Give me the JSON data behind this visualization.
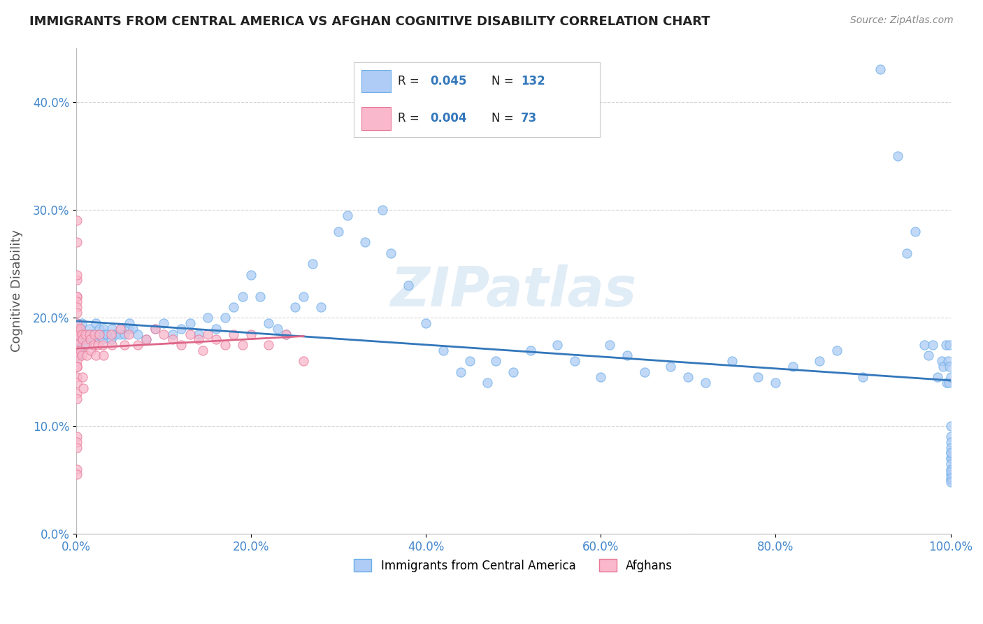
{
  "title": "IMMIGRANTS FROM CENTRAL AMERICA VS AFGHAN COGNITIVE DISABILITY CORRELATION CHART",
  "source": "Source: ZipAtlas.com",
  "ylabel": "Cognitive Disability",
  "watermark": "ZIPatlas",
  "xlim": [
    0.0,
    1.0
  ],
  "ylim": [
    0.0,
    0.45
  ],
  "yticks": [
    0.0,
    0.1,
    0.2,
    0.3,
    0.4
  ],
  "ytick_labels": [
    "0.0%",
    "10.0%",
    "20.0%",
    "30.0%",
    "40.0%"
  ],
  "xticks": [
    0.0,
    0.2,
    0.4,
    0.6,
    0.8,
    1.0
  ],
  "xtick_labels": [
    "0.0%",
    "20.0%",
    "40.0%",
    "60.0%",
    "80.0%",
    "100.0%"
  ],
  "series1_name": "Immigrants from Central America",
  "series1_color": "#aeccf5",
  "series1_edge": "#6aaee8",
  "series1_R": 0.045,
  "series1_N": 132,
  "series2_name": "Afghans",
  "series2_color": "#f9b8cc",
  "series2_edge": "#e87898",
  "series2_R": 0.004,
  "series2_N": 73,
  "line1_color": "#3377bb",
  "line2_color": "#dd6688",
  "background_color": "#ffffff",
  "grid_color": "#cccccc",
  "title_color": "#222222",
  "source_color": "#888888",
  "legend_color": "#3377bb",
  "series1_x": [
    0.002,
    0.003,
    0.001,
    0.002,
    0.001,
    0.002,
    0.003,
    0.001,
    0.002,
    0.002,
    0.001,
    0.002,
    0.003,
    0.001,
    0.002,
    0.001,
    0.003,
    0.002,
    0.001,
    0.002,
    0.005,
    0.006,
    0.007,
    0.005,
    0.006,
    0.01,
    0.011,
    0.012,
    0.015,
    0.016,
    0.02,
    0.021,
    0.022,
    0.025,
    0.026,
    0.03,
    0.031,
    0.032,
    0.035,
    0.04,
    0.041,
    0.045,
    0.05,
    0.051,
    0.055,
    0.06,
    0.061,
    0.065,
    0.07,
    0.08,
    0.09,
    0.1,
    0.11,
    0.12,
    0.13,
    0.14,
    0.15,
    0.16,
    0.17,
    0.18,
    0.19,
    0.2,
    0.21,
    0.22,
    0.23,
    0.24,
    0.25,
    0.26,
    0.27,
    0.28,
    0.3,
    0.31,
    0.33,
    0.35,
    0.36,
    0.38,
    0.4,
    0.42,
    0.44,
    0.45,
    0.47,
    0.48,
    0.5,
    0.52,
    0.55,
    0.57,
    0.6,
    0.61,
    0.63,
    0.65,
    0.68,
    0.7,
    0.72,
    0.75,
    0.78,
    0.8,
    0.82,
    0.85,
    0.87,
    0.9,
    0.92,
    0.94,
    0.95,
    0.96,
    0.97,
    0.975,
    0.98,
    0.985,
    0.99,
    0.992,
    0.995,
    0.996,
    0.997,
    0.998,
    0.999,
    0.999,
    1.0,
    1.0,
    1.0,
    1.0,
    1.0,
    1.0,
    1.0,
    1.0,
    1.0,
    1.0,
    1.0,
    1.0,
    1.0,
    1.0,
    1.0,
    1.0
  ],
  "series1_y": [
    0.19,
    0.18,
    0.17,
    0.185,
    0.195,
    0.18,
    0.17,
    0.175,
    0.185,
    0.165,
    0.19,
    0.175,
    0.17,
    0.185,
    0.19,
    0.175,
    0.165,
    0.19,
    0.18,
    0.175,
    0.19,
    0.185,
    0.175,
    0.18,
    0.195,
    0.185,
    0.18,
    0.175,
    0.19,
    0.185,
    0.185,
    0.18,
    0.195,
    0.185,
    0.19,
    0.18,
    0.19,
    0.185,
    0.185,
    0.18,
    0.19,
    0.185,
    0.185,
    0.19,
    0.185,
    0.19,
    0.195,
    0.19,
    0.185,
    0.18,
    0.19,
    0.195,
    0.185,
    0.19,
    0.195,
    0.185,
    0.2,
    0.19,
    0.2,
    0.21,
    0.22,
    0.24,
    0.22,
    0.195,
    0.19,
    0.185,
    0.21,
    0.22,
    0.25,
    0.21,
    0.28,
    0.295,
    0.27,
    0.3,
    0.26,
    0.23,
    0.195,
    0.17,
    0.15,
    0.16,
    0.14,
    0.16,
    0.15,
    0.17,
    0.175,
    0.16,
    0.145,
    0.175,
    0.165,
    0.15,
    0.155,
    0.145,
    0.14,
    0.16,
    0.145,
    0.14,
    0.155,
    0.16,
    0.17,
    0.145,
    0.43,
    0.35,
    0.26,
    0.28,
    0.175,
    0.165,
    0.175,
    0.145,
    0.16,
    0.155,
    0.175,
    0.14,
    0.16,
    0.14,
    0.155,
    0.175,
    0.145,
    0.07,
    0.07,
    0.075,
    0.09,
    0.085,
    0.08,
    0.1,
    0.075,
    0.065,
    0.06,
    0.055,
    0.05,
    0.058,
    0.052,
    0.048
  ],
  "series2_x": [
    0.001,
    0.001,
    0.001,
    0.001,
    0.001,
    0.001,
    0.001,
    0.001,
    0.001,
    0.001,
    0.001,
    0.001,
    0.001,
    0.001,
    0.001,
    0.001,
    0.001,
    0.001,
    0.001,
    0.001,
    0.001,
    0.001,
    0.001,
    0.001,
    0.001,
    0.001,
    0.001,
    0.001,
    0.001,
    0.001,
    0.005,
    0.006,
    0.007,
    0.005,
    0.006,
    0.007,
    0.008,
    0.01,
    0.011,
    0.012,
    0.015,
    0.016,
    0.017,
    0.02,
    0.021,
    0.022,
    0.025,
    0.026,
    0.03,
    0.031,
    0.04,
    0.041,
    0.05,
    0.055,
    0.06,
    0.07,
    0.08,
    0.09,
    0.1,
    0.11,
    0.12,
    0.13,
    0.14,
    0.145,
    0.15,
    0.16,
    0.17,
    0.18,
    0.19,
    0.2,
    0.22,
    0.24,
    0.26
  ],
  "series2_y": [
    0.29,
    0.27,
    0.22,
    0.235,
    0.24,
    0.22,
    0.215,
    0.21,
    0.205,
    0.19,
    0.185,
    0.18,
    0.195,
    0.185,
    0.175,
    0.17,
    0.165,
    0.16,
    0.155,
    0.155,
    0.145,
    0.14,
    0.13,
    0.155,
    0.125,
    0.09,
    0.085,
    0.08,
    0.06,
    0.055,
    0.19,
    0.185,
    0.18,
    0.17,
    0.165,
    0.145,
    0.135,
    0.185,
    0.175,
    0.165,
    0.185,
    0.18,
    0.17,
    0.175,
    0.185,
    0.165,
    0.175,
    0.185,
    0.175,
    0.165,
    0.185,
    0.175,
    0.19,
    0.175,
    0.185,
    0.175,
    0.18,
    0.19,
    0.185,
    0.18,
    0.175,
    0.185,
    0.18,
    0.17,
    0.185,
    0.18,
    0.175,
    0.185,
    0.175,
    0.185,
    0.175,
    0.185,
    0.16
  ]
}
